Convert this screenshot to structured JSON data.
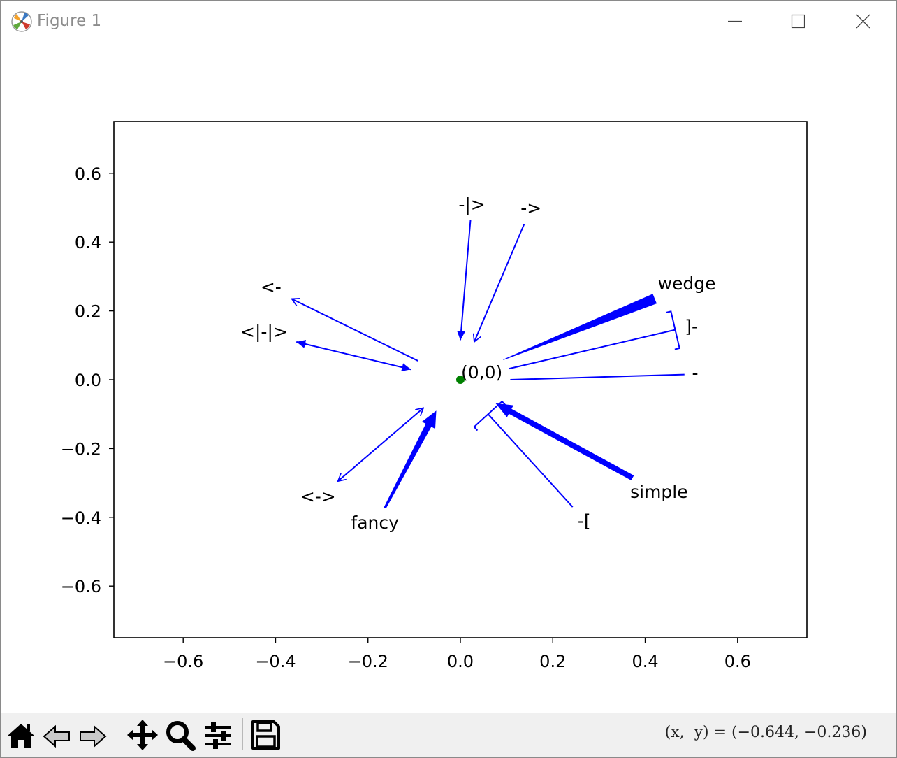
{
  "window": {
    "title": "Figure 1",
    "icons": {
      "app": "matplotlib-logo-icon",
      "minimize": "minimize-icon",
      "maximize": "maximize-icon",
      "close": "close-icon"
    }
  },
  "toolbar": {
    "buttons": [
      {
        "name": "home-button",
        "icon": "home-icon"
      },
      {
        "name": "back-button",
        "icon": "back-arrow-icon"
      },
      {
        "name": "forward-button",
        "icon": "forward-arrow-icon"
      },
      {
        "name": "pan-button",
        "icon": "move-icon"
      },
      {
        "name": "zoom-button",
        "icon": "magnifier-icon"
      },
      {
        "name": "configure-subplots-button",
        "icon": "sliders-icon"
      },
      {
        "name": "save-button",
        "icon": "floppy-disk-icon"
      }
    ],
    "coordinates": "(x,  y) = (−0.644, −0.236)"
  },
  "chart_data": {
    "type": "scatter",
    "title": "",
    "xlabel": "",
    "ylabel": "",
    "xlim": [
      -0.75,
      0.75
    ],
    "ylim": [
      -0.75,
      0.75
    ],
    "xticks": [
      -0.6,
      -0.4,
      -0.2,
      0.0,
      0.2,
      0.4,
      0.6
    ],
    "yticks": [
      -0.6,
      -0.4,
      -0.2,
      0.0,
      0.2,
      0.4,
      0.6
    ],
    "xtick_labels": [
      "−0.6",
      "−0.4",
      "−0.2",
      "0.0",
      "0.2",
      "0.4",
      "0.6"
    ],
    "ytick_labels": [
      "−0.6",
      "−0.4",
      "−0.2",
      "0.0",
      "0.2",
      "0.4",
      "0.6"
    ],
    "grid": false,
    "line_color": "#0000ff",
    "point": {
      "x": 0.0,
      "y": 0.0,
      "label": "(0,0)",
      "color": "#008000"
    },
    "annotations": [
      {
        "style": "-|>",
        "text_x": 0.025,
        "text_y": 0.51,
        "start": [
          0.022,
          0.465
        ],
        "end": [
          0.0,
          0.115
        ]
      },
      {
        "style": "->",
        "text_x": 0.153,
        "text_y": 0.5,
        "start": [
          0.138,
          0.452
        ],
        "end": [
          0.03,
          0.11
        ]
      },
      {
        "style": "<-",
        "text_x": -0.41,
        "text_y": 0.27,
        "start": [
          -0.092,
          0.055
        ],
        "end": [
          -0.365,
          0.235
        ]
      },
      {
        "style": "<|-|>",
        "text_x": -0.425,
        "text_y": 0.14,
        "start": [
          -0.107,
          0.03
        ],
        "end": [
          -0.355,
          0.11
        ]
      },
      {
        "style": "<->",
        "text_x": -0.308,
        "text_y": -0.338,
        "start": [
          -0.08,
          -0.082
        ],
        "end": [
          -0.265,
          -0.295
        ]
      },
      {
        "style": "fancy",
        "text_x": -0.185,
        "text_y": -0.415,
        "start": [
          -0.163,
          -0.372
        ],
        "end": [
          -0.053,
          -0.092
        ]
      },
      {
        "style": "wedge",
        "text_x": 0.49,
        "text_y": 0.28,
        "start": [
          0.093,
          0.058
        ],
        "end": [
          0.42,
          0.235
        ]
      },
      {
        "style": "]-",
        "text_x": 0.5,
        "text_y": 0.155,
        "start": [
          0.105,
          0.032
        ],
        "end": [
          0.465,
          0.145
        ],
        "bracket": "start"
      },
      {
        "style": "-",
        "text_x": 0.508,
        "text_y": 0.02,
        "start": [
          0.108,
          0.0
        ],
        "end": [
          0.485,
          0.015
        ]
      },
      {
        "style": "-[",
        "text_x": 0.268,
        "text_y": -0.41,
        "start": [
          0.243,
          -0.37
        ],
        "end": [
          0.06,
          -0.1
        ],
        "bracket": "end"
      },
      {
        "style": "simple",
        "text_x": 0.43,
        "text_y": -0.325,
        "start": [
          0.372,
          -0.285
        ],
        "end": [
          0.078,
          -0.07
        ]
      }
    ]
  }
}
